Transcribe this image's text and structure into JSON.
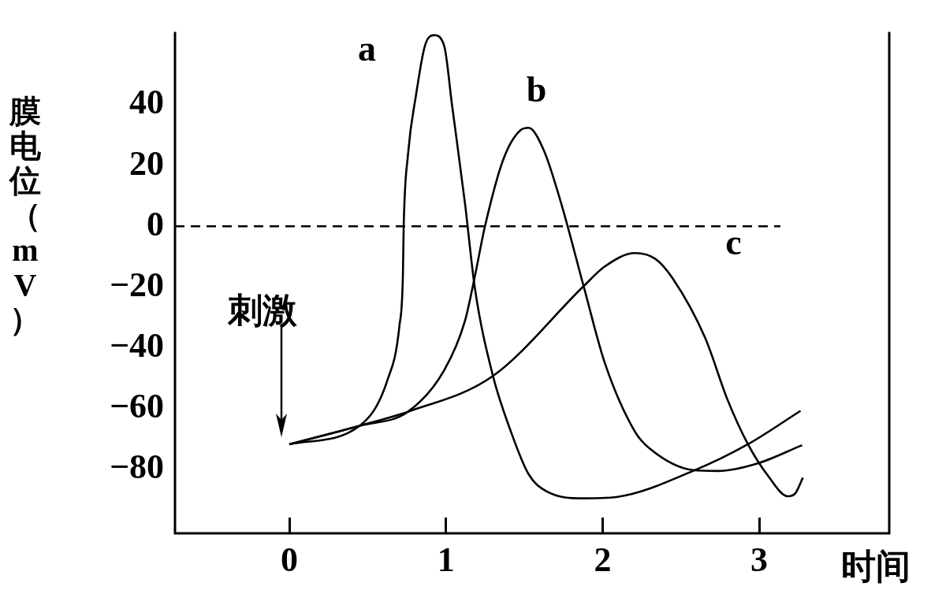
{
  "chart_data": {
    "type": "line",
    "xlabel": "时间",
    "ylabel": "膜电位（mV）",
    "xlim": [
      -0.73,
      3.83
    ],
    "xticks": [
      0,
      1,
      2,
      3
    ],
    "ylim": [
      -101,
      64
    ],
    "yticks": [
      -80,
      -60,
      -40,
      -20,
      0,
      20,
      40
    ],
    "grid": false,
    "legend": false,
    "marker": "none",
    "line_style": "solid",
    "series": [
      {
        "name": "a",
        "color": "#000000",
        "x": [
          0,
          0.449,
          0.627,
          0.703,
          0.725,
          0.73,
          0.757,
          0.811,
          0.865,
          0.924,
          0.989,
          1.039,
          1.122,
          1.185,
          1.298,
          1.415,
          1.527,
          1.639,
          1.883,
          2.096,
          2.577,
          2.928,
          3.264
        ],
        "values": [
          -71.7,
          -65.6,
          -50.5,
          -32.7,
          -16.3,
          0,
          23.4,
          43.9,
          59.3,
          62.9,
          59.3,
          39.8,
          7.3,
          -20.5,
          -48.8,
          -67.6,
          -81.5,
          -87.1,
          -89.5,
          -89,
          -80.5,
          -71.7,
          -60.7
        ]
      },
      {
        "name": "b",
        "color": "#000000",
        "x": [
          0,
          0.449,
          0.757,
          0.989,
          1.122,
          1.185,
          1.249,
          1.366,
          1.478,
          1.527,
          1.624,
          1.737,
          1.883,
          2.014,
          2.207,
          2.303,
          2.577,
          2.736,
          2.99,
          3.274
        ],
        "values": [
          -71.7,
          -65.6,
          -61,
          -47.3,
          -31,
          -16.3,
          0,
          22,
          31.7,
          32.4,
          25.1,
          7.3,
          -20.5,
          -44.9,
          -67.6,
          -73.2,
          -80.2,
          -80.5,
          -78,
          -72
        ]
      },
      {
        "name": "c",
        "color": "#000000",
        "x": [
          0,
          0.449,
          0.757,
          1.298,
          1.883,
          2.014,
          2.207,
          2.337,
          2.447,
          2.654,
          2.798,
          2.928,
          3.058,
          3.183,
          3.231,
          3.279
        ],
        "values": [
          -71.7,
          -65.6,
          -61,
          -49.3,
          -19.5,
          -13.2,
          -8.8,
          -10.7,
          -17.1,
          -36.6,
          -57.1,
          -71.7,
          -82.2,
          -88.8,
          -87.8,
          -82.7
        ]
      }
    ],
    "ref_lines": [
      {
        "axis": "y",
        "value": 0,
        "color": "#000000",
        "line_style": "dashed"
      }
    ],
    "annotations": [
      "刺激"
    ]
  }
}
